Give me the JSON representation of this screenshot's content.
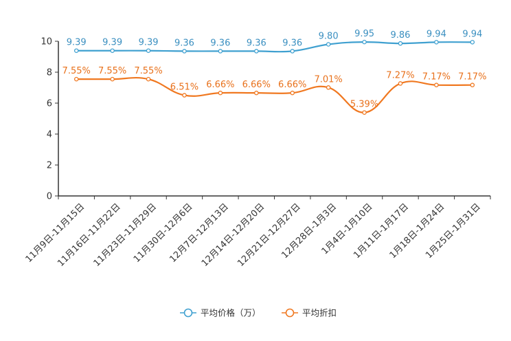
{
  "chart_data": {
    "type": "line",
    "categories": [
      "11月9日-11月15日",
      "11月16日-11月22日",
      "11月23日-11月29日",
      "11月30日-12月6日",
      "12月7日-12月13日",
      "12月14日-12月20日",
      "12月21日-12月27日",
      "12月28日-1月3日",
      "1月4日-1月10日",
      "1月11日-1月17日",
      "1月18日-1月24日",
      "1月25日-1月31日"
    ],
    "ylim": [
      0,
      10
    ],
    "yticks": [
      0,
      2,
      4,
      6,
      8,
      10
    ],
    "series": [
      {
        "name": "平均价格（万）",
        "color": "#3fa0d0",
        "label_color": "#3a8fc0",
        "values": [
          9.39,
          9.39,
          9.39,
          9.36,
          9.36,
          9.36,
          9.36,
          9.8,
          9.95,
          9.86,
          9.94,
          9.94
        ],
        "labels": [
          "9.39",
          "9.39",
          "9.39",
          "9.36",
          "9.36",
          "9.36",
          "9.36",
          "9.80",
          "9.95",
          "9.86",
          "9.94",
          "9.94"
        ]
      },
      {
        "name": "平均折扣",
        "color": "#f07820",
        "label_color": "#e8701a",
        "values": [
          7.55,
          7.55,
          7.55,
          6.51,
          6.66,
          6.66,
          6.66,
          7.01,
          5.39,
          7.27,
          7.17,
          7.17
        ],
        "labels": [
          "7.55%",
          "7.55%",
          "7.55%",
          "6.51%",
          "6.66%",
          "6.66%",
          "6.66%",
          "7.01%",
          "5.39%",
          "7.27%",
          "7.17%",
          "7.17%"
        ]
      }
    ],
    "legend_position": "bottom-center",
    "title": "",
    "xlabel": "",
    "ylabel": ""
  }
}
